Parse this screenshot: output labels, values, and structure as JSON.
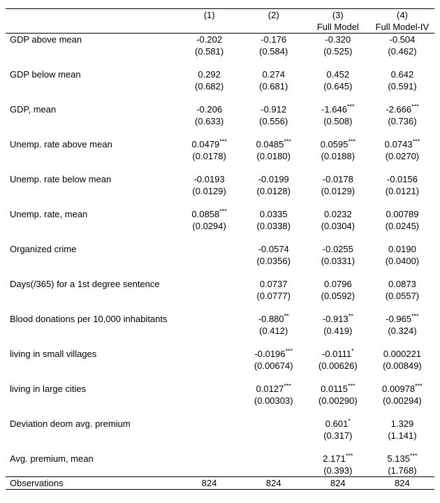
{
  "header": {
    "cols": [
      "(1)",
      "(2)",
      "(3)",
      "(4)"
    ],
    "subs": [
      "",
      "",
      "Full Model",
      "Full Model-IV"
    ]
  },
  "rows": [
    {
      "label": "GDP above mean",
      "coef": [
        "-0.202",
        "-0.176",
        "-0.320",
        "-0.504"
      ],
      "sig": [
        "",
        "",
        "",
        ""
      ],
      "se": [
        "(0.581)",
        "(0.584)",
        "(0.525)",
        "(0.462)"
      ]
    },
    {
      "label": "GDP below mean",
      "coef": [
        "0.292",
        "0.274",
        "0.452",
        "0.642"
      ],
      "sig": [
        "",
        "",
        "",
        ""
      ],
      "se": [
        "(0.682)",
        "(0.681)",
        "(0.645)",
        "(0.591)"
      ]
    },
    {
      "label": "GDP,  mean",
      "coef": [
        "-0.206",
        "-0.912",
        "-1.646",
        "-2.666"
      ],
      "sig": [
        "",
        "",
        "***",
        "***"
      ],
      "se": [
        "(0.633)",
        "(0.556)",
        "(0.508)",
        "(0.736)"
      ]
    },
    {
      "label": "Unemp. rate above mean",
      "coef": [
        "0.0479",
        "0.0485",
        "0.0595",
        "0.0743"
      ],
      "sig": [
        "***",
        "***",
        "***",
        "***"
      ],
      "se": [
        "(0.0178)",
        "(0.0180)",
        "(0.0188)",
        "(0.0270)"
      ]
    },
    {
      "label": "Unemp. rate below mean",
      "coef": [
        "-0.0193",
        "-0.0199",
        "-0.0178",
        "-0.0156"
      ],
      "sig": [
        "",
        "",
        "",
        ""
      ],
      "se": [
        "(0.0129)",
        "(0.0128)",
        "(0.0129)",
        "(0.0121)"
      ]
    },
    {
      "label": "Unemp. rate,  mean",
      "coef": [
        "0.0858",
        "0.0335",
        "0.0232",
        "0.00789"
      ],
      "sig": [
        "***",
        "",
        "",
        ""
      ],
      "se": [
        "(0.0294)",
        "(0.0338)",
        "(0.0304)",
        "(0.0245)"
      ]
    },
    {
      "label": "Organized crime",
      "coef": [
        "",
        "-0.0574",
        "-0.0255",
        "0.0190"
      ],
      "sig": [
        "",
        "",
        "",
        ""
      ],
      "se": [
        "",
        "(0.0356)",
        "(0.0331)",
        "(0.0400)"
      ]
    },
    {
      "label": "Days(/365) for a 1st degree sentence",
      "coef": [
        "",
        "0.0737",
        "0.0796",
        "0.0873"
      ],
      "sig": [
        "",
        "",
        "",
        ""
      ],
      "se": [
        "",
        "(0.0777)",
        "(0.0592)",
        "(0.0557)"
      ]
    },
    {
      "label": "Blood donations per 10,000 inhabitants",
      "coef": [
        "",
        "-0.880",
        "-0.913",
        "-0.965"
      ],
      "sig": [
        "",
        "**",
        "**",
        "***"
      ],
      "se": [
        "",
        "(0.412)",
        "(0.419)",
        "(0.324)"
      ]
    },
    {
      "label": " living in small villages",
      "coef": [
        "",
        "-0.0196",
        "-0.0111",
        "0.000221"
      ],
      "sig": [
        "",
        "***",
        "*",
        ""
      ],
      "se": [
        "",
        "(0.00674)",
        "(0.00626)",
        "(0.00849)"
      ]
    },
    {
      "label": " living in large cities",
      "coef": [
        "",
        "0.0127",
        "0.0115",
        "0.00978"
      ],
      "sig": [
        "",
        "***",
        "***",
        "***"
      ],
      "se": [
        "",
        "(0.00303)",
        "(0.00290)",
        "(0.00294)"
      ]
    },
    {
      "label": "Deviation deom avg. premium",
      "coef": [
        "",
        "",
        "0.601",
        "1.329"
      ],
      "sig": [
        "",
        "",
        "*",
        ""
      ],
      "se": [
        "",
        "",
        "(0.317)",
        "(1.141)"
      ]
    },
    {
      "label": "Avg. premium, mean",
      "coef": [
        "",
        "",
        "2.171",
        "5.135"
      ],
      "sig": [
        "",
        "",
        "***",
        "***"
      ],
      "se": [
        "",
        "",
        "(0.393)",
        "(1.768)"
      ]
    }
  ],
  "footer": {
    "label": "Observations",
    "vals": [
      "824",
      "824",
      "824",
      "824"
    ]
  }
}
